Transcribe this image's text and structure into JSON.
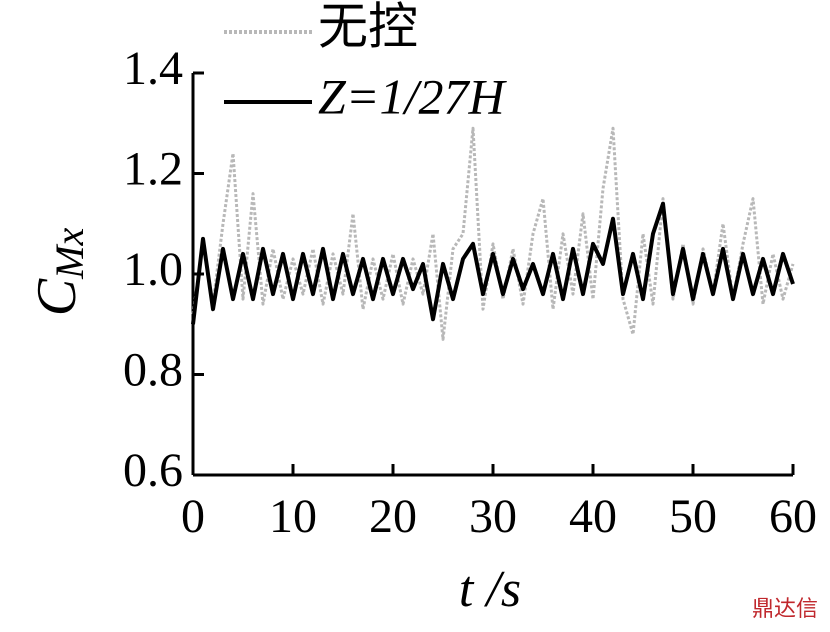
{
  "chart_data": {
    "type": "line",
    "ylabel": "C",
    "ylabel_sub": "Mx",
    "xlabel": "t /s",
    "x": [
      0,
      1,
      2,
      3,
      4,
      5,
      6,
      7,
      8,
      9,
      10,
      11,
      12,
      13,
      14,
      15,
      16,
      17,
      18,
      19,
      20,
      21,
      22,
      23,
      24,
      25,
      26,
      27,
      28,
      29,
      30,
      31,
      32,
      33,
      34,
      35,
      36,
      37,
      38,
      39,
      40,
      41,
      42,
      43,
      44,
      45,
      46,
      47,
      48,
      49,
      50,
      51,
      52,
      53,
      54,
      55,
      56,
      57,
      58,
      59,
      60
    ],
    "series": [
      {
        "name": "无控",
        "color": "#b8b8b8",
        "values": [
          0.92,
          1.06,
          0.94,
          1.1,
          1.24,
          0.95,
          1.16,
          0.94,
          1.05,
          0.95,
          1.03,
          0.96,
          1.05,
          0.94,
          1.04,
          0.96,
          1.12,
          0.93,
          1.03,
          0.95,
          1.04,
          0.94,
          1.03,
          0.96,
          1.08,
          0.87,
          1.05,
          1.08,
          1.29,
          0.93,
          1.06,
          0.95,
          1.05,
          0.94,
          1.08,
          1.15,
          0.93,
          1.08,
          0.96,
          1.12,
          0.95,
          1.17,
          1.29,
          0.95,
          0.88,
          1.08,
          0.94,
          1.15,
          0.95,
          1.06,
          0.94,
          1.05,
          0.96,
          1.1,
          0.95,
          1.06,
          1.15,
          0.94,
          1.04,
          0.95,
          1.02
        ]
      },
      {
        "name": "Z=1/27H",
        "color": "#000000",
        "values": [
          0.9,
          1.07,
          0.93,
          1.05,
          0.95,
          1.04,
          0.95,
          1.05,
          0.96,
          1.04,
          0.95,
          1.04,
          0.96,
          1.05,
          0.95,
          1.04,
          0.96,
          1.03,
          0.95,
          1.03,
          0.96,
          1.03,
          0.97,
          1.02,
          0.91,
          1.02,
          0.95,
          1.03,
          1.06,
          0.96,
          1.04,
          0.96,
          1.03,
          0.97,
          1.02,
          0.96,
          1.04,
          0.95,
          1.05,
          0.96,
          1.06,
          1.02,
          1.11,
          0.96,
          1.04,
          0.95,
          1.08,
          1.14,
          0.96,
          1.05,
          0.95,
          1.04,
          0.96,
          1.05,
          0.95,
          1.04,
          0.96,
          1.03,
          0.96,
          1.04,
          0.98
        ]
      }
    ],
    "xlim": [
      0,
      60
    ],
    "xticks": [
      0,
      10,
      20,
      30,
      40,
      50,
      60
    ],
    "ylim": [
      0.6,
      1.4
    ],
    "yticks": [
      0.6,
      0.8,
      {
        "value": 1,
        "label": "1.0"
      },
      1.2,
      1.4
    ],
    "legend": "upper left",
    "watermark": "鼎达信"
  }
}
